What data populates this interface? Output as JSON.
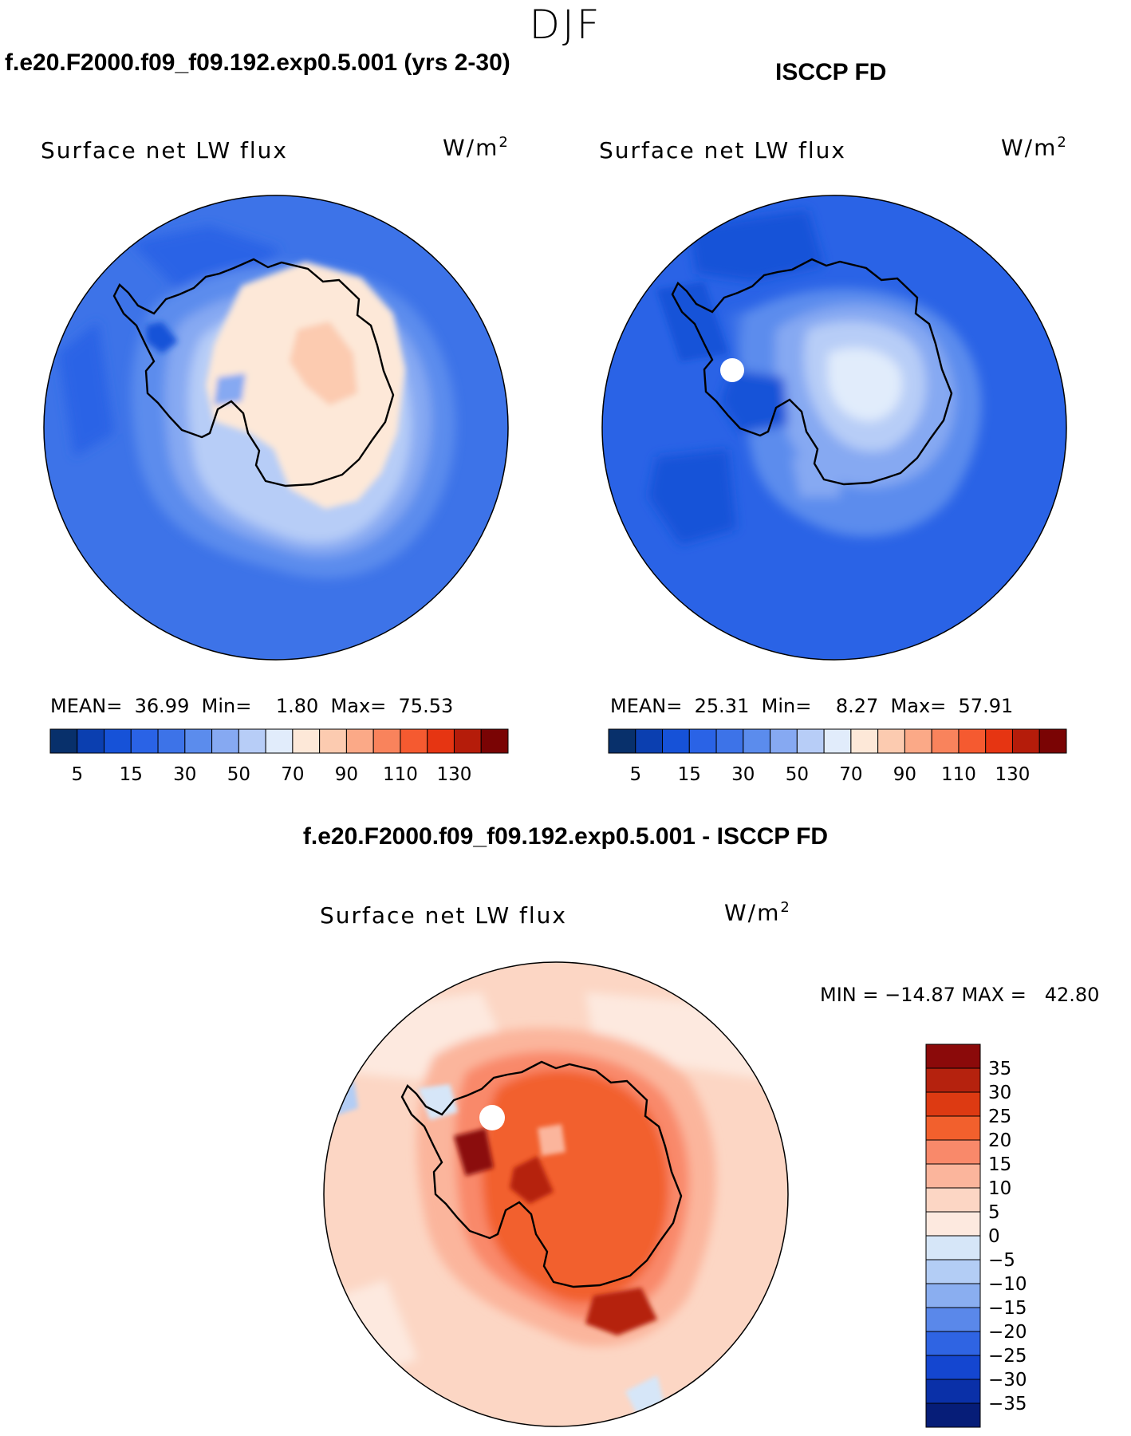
{
  "season": "DJF",
  "panels": [
    {
      "title": "f.e20.F2000.f09_f09.192.exp0.5.001 (yrs 2-30)",
      "variable": "Surface net LW flux",
      "units_base": "W/m",
      "units_exp": "2",
      "stats": {
        "mean_label": "MEAN=",
        "mean": "36.99",
        "min_label": "Min=",
        "min": "1.80",
        "max_label": "Max=",
        "max": "75.53"
      }
    },
    {
      "title": "ISCCP FD",
      "variable": "Surface net LW flux",
      "units_base": "W/m",
      "units_exp": "2",
      "stats": {
        "mean_label": "MEAN=",
        "mean": "25.31",
        "min_label": "Min=",
        "min": "8.27",
        "max_label": "Max=",
        "max": "57.91"
      }
    }
  ],
  "diff_panel": {
    "title": "f.e20.F2000.f09_f09.192.exp0.5.001 - ISCCP FD",
    "variable": "Surface net LW flux",
    "units_base": "W/m",
    "units_exp": "2",
    "stats_text": "MIN = −14.87 MAX =   42.80"
  },
  "chart_data": [
    {
      "type": "heatmap",
      "projection": "south-polar-stereographic",
      "title": "f.e20.F2000.f09_f09.192.exp0.5.001 (yrs 2-30)",
      "variable": "Surface net LW flux",
      "units": "W/m2",
      "mean": 36.99,
      "min": 1.8,
      "max": 75.53,
      "colorbar": {
        "orientation": "horizontal",
        "levels": [
          5,
          10,
          15,
          20,
          25,
          30,
          40,
          50,
          60,
          70,
          80,
          90,
          100,
          110,
          120,
          130
        ],
        "tick_labels": [
          "5",
          "15",
          "30",
          "50",
          "70",
          "90",
          "110",
          "130"
        ],
        "colors": [
          "#08306b",
          "#0b3fb0",
          "#1652d8",
          "#2a63e6",
          "#3d73e8",
          "#5b8ced",
          "#86a9f2",
          "#b7cdf7",
          "#e1ecfb",
          "#fde8d8",
          "#fccbb0",
          "#fba987",
          "#f9835c",
          "#f55a30",
          "#e63512",
          "#b51c0a",
          "#7a0404"
        ]
      }
    },
    {
      "type": "heatmap",
      "projection": "south-polar-stereographic",
      "title": "ISCCP FD",
      "variable": "Surface net LW flux",
      "units": "W/m2",
      "mean": 25.31,
      "min": 8.27,
      "max": 57.91,
      "colorbar": {
        "orientation": "horizontal",
        "levels": [
          5,
          10,
          15,
          20,
          25,
          30,
          40,
          50,
          60,
          70,
          80,
          90,
          100,
          110,
          120,
          130
        ],
        "tick_labels": [
          "5",
          "15",
          "30",
          "50",
          "70",
          "90",
          "110",
          "130"
        ],
        "colors": [
          "#08306b",
          "#0b3fb0",
          "#1652d8",
          "#2a63e6",
          "#3d73e8",
          "#5b8ced",
          "#86a9f2",
          "#b7cdf7",
          "#e1ecfb",
          "#fde8d8",
          "#fccbb0",
          "#fba987",
          "#f9835c",
          "#f55a30",
          "#e63512",
          "#b51c0a",
          "#7a0404"
        ]
      }
    },
    {
      "type": "heatmap",
      "projection": "south-polar-stereographic",
      "title": "f.e20.F2000.f09_f09.192.exp0.5.001 - ISCCP FD",
      "variable": "Surface net LW flux",
      "units": "W/m2",
      "min": -14.87,
      "max": 42.8,
      "colorbar": {
        "orientation": "vertical",
        "levels": [
          35,
          30,
          25,
          20,
          15,
          10,
          5,
          0,
          -5,
          -10,
          -15,
          -20,
          -25,
          -30,
          -35
        ],
        "tick_labels": [
          "35",
          "30",
          "25",
          "20",
          "15",
          "10",
          "5",
          "0",
          "−5",
          "−10",
          "−15",
          "−20",
          "−25",
          "−30",
          "−35"
        ],
        "colors": [
          "#8b0a0a",
          "#b5220e",
          "#dd3a12",
          "#f2602d",
          "#f9896a",
          "#fbb59c",
          "#fcd6c4",
          "#fde9df",
          "#d6e6f8",
          "#b3cdf5",
          "#8aaef0",
          "#5a88ea",
          "#2f64e3",
          "#1446d0",
          "#0a30a8",
          "#061d78"
        ]
      }
    }
  ]
}
